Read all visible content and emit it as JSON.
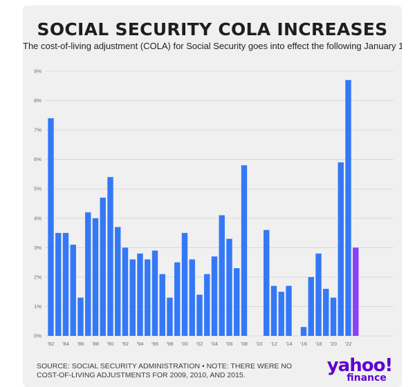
{
  "header": {
    "title": "SOCIAL SECURITY COLA INCREASES",
    "subtitle": "The cost-of-living adjustment (COLA) for Social Security goes into effect the following January 1"
  },
  "footer": {
    "source_note": "SOURCE: SOCIAL SECURITY ADMINISTRATION • NOTE: THERE WERE NO COST-OF-LIVING ADJUSTMENTS FOR 2009, 2010, AND 2015.",
    "logo_main": "yahoo!",
    "logo_sub": "finance"
  },
  "colors": {
    "bar": "#3478f6",
    "highlight": "#8a3ffc",
    "grid": "#d4d4d4",
    "logo": "#5f01d1"
  },
  "chart_data": {
    "type": "bar",
    "title": "SOCIAL SECURITY COLA INCREASES",
    "xlabel": "",
    "ylabel": "",
    "ylim": [
      0,
      9
    ],
    "y_ticks": [
      "0%",
      "1%",
      "2%",
      "3%",
      "4%",
      "5%",
      "6%",
      "7%",
      "8%",
      "9%"
    ],
    "categories": [
      "1982",
      "1983",
      "1984",
      "1985",
      "1986",
      "1987",
      "1988",
      "1989",
      "1990",
      "1991",
      "1992",
      "1993",
      "1994",
      "1995",
      "1996",
      "1997",
      "1998",
      "1999",
      "2000",
      "2001",
      "2002",
      "2003",
      "2004",
      "2005",
      "2006",
      "2007",
      "2008",
      "2009",
      "2010",
      "2011",
      "2012",
      "2013",
      "2014",
      "2015",
      "2016",
      "2017",
      "2018",
      "2019",
      "2020",
      "2021",
      "2022",
      "2023"
    ],
    "x_tick_labels": [
      "'82",
      "'84",
      "'86",
      "'88",
      "'90",
      "'92",
      "'94",
      "'96",
      "'98",
      "'00",
      "'02",
      "'04",
      "'06",
      "'08",
      "'10",
      "'12",
      "'14",
      "'16",
      "'18",
      "'20",
      "'22"
    ],
    "values": [
      7.4,
      3.5,
      3.5,
      3.1,
      1.3,
      4.2,
      4.0,
      4.7,
      5.4,
      3.7,
      3.0,
      2.6,
      2.8,
      2.6,
      2.9,
      2.1,
      1.3,
      2.5,
      3.5,
      2.6,
      1.4,
      2.1,
      2.7,
      4.1,
      3.3,
      2.3,
      5.8,
      0,
      0,
      3.6,
      1.7,
      1.5,
      1.7,
      0,
      0.3,
      2.0,
      2.8,
      1.6,
      1.3,
      5.9,
      8.7,
      3.0
    ],
    "highlighted_category": "2023",
    "grid": true
  }
}
